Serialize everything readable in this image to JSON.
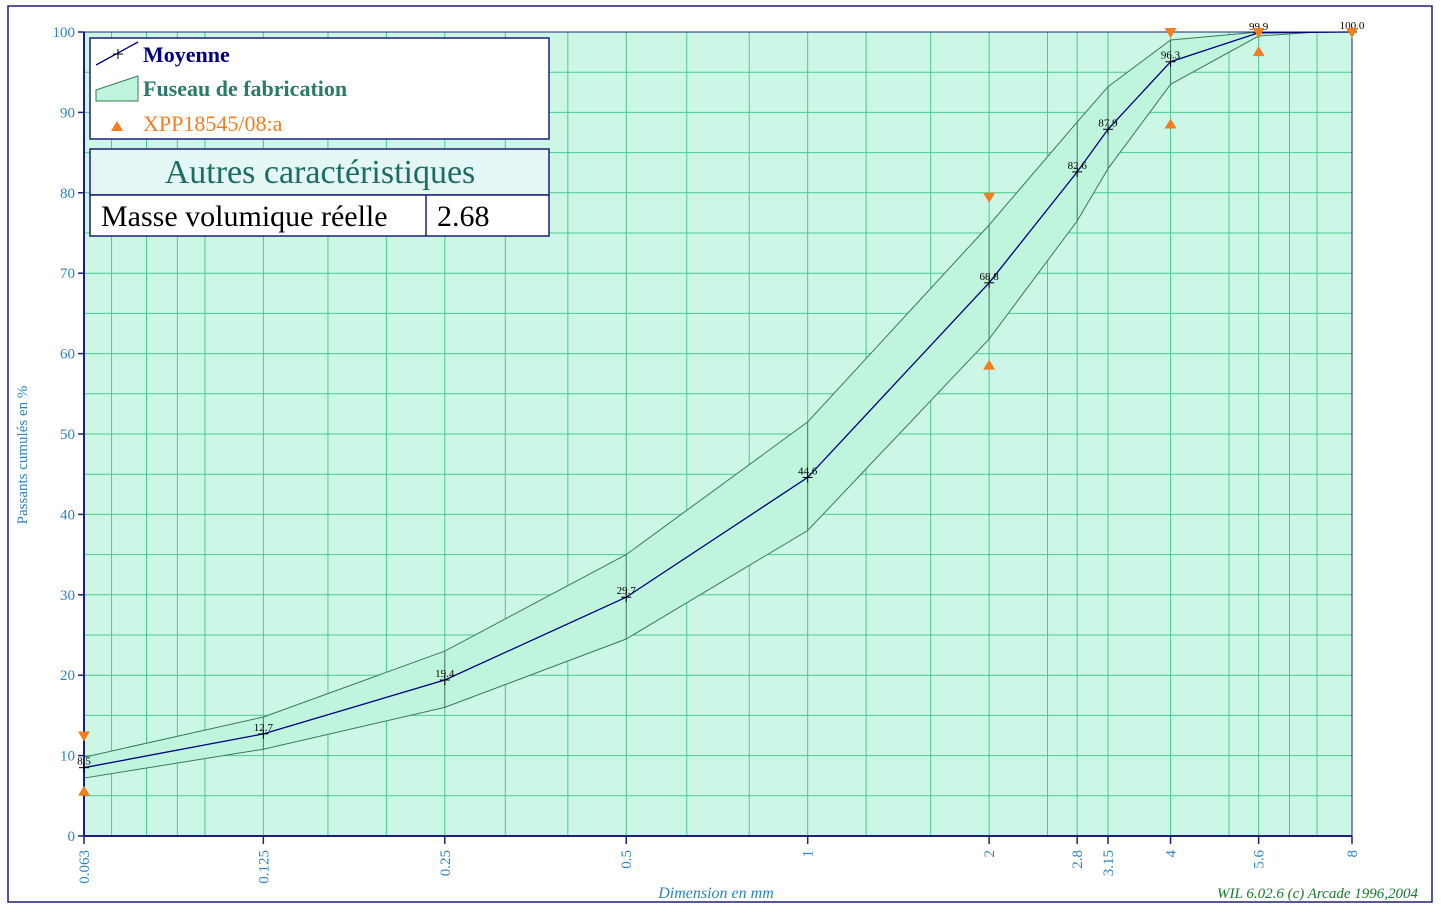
{
  "chart_data": {
    "type": "line",
    "xlabel": "Dimension en mm",
    "ylabel": "Passants cumulés en %",
    "x_scale": "log",
    "ylim": [
      0,
      100
    ],
    "yticks": [
      0,
      10,
      20,
      30,
      40,
      50,
      60,
      70,
      80,
      90,
      100
    ],
    "xticks": [
      "0.063",
      "0.125",
      "0.25",
      "0.5",
      "1",
      "2",
      "2.8",
      "3.15",
      "4",
      "5.6",
      "8"
    ],
    "grid": true,
    "legend_position": "top-left",
    "series": [
      {
        "name": "Moyenne",
        "x": [
          0.063,
          0.125,
          0.25,
          0.5,
          1,
          2,
          2.8,
          3.15,
          4,
          5.6,
          8
        ],
        "y": [
          8.5,
          12.7,
          19.4,
          29.7,
          44.6,
          68.8,
          82.6,
          87.9,
          96.3,
          99.9,
          100.0
        ],
        "labels": [
          "8.5",
          "12.7",
          "19.4",
          "29.7",
          "44.6",
          "68.8",
          "82.6",
          "87.9",
          "96.3",
          "99.9",
          "100.0"
        ],
        "color": "#000080"
      },
      {
        "name": "Fuseau de fabrication",
        "x": [
          0.063,
          0.125,
          0.25,
          0.5,
          1,
          2,
          2.8,
          3.15,
          4,
          5.6,
          7
        ],
        "upper": [
          9.8,
          14.8,
          23.0,
          35.0,
          51.5,
          76.0,
          88.8,
          93.2,
          99.0,
          100,
          100
        ],
        "lower": [
          7.2,
          10.8,
          16.0,
          24.5,
          38.0,
          61.8,
          76.5,
          83.0,
          93.5,
          99.5,
          100
        ],
        "fill": "#bff5dc",
        "stroke": "#3a7a5a"
      },
      {
        "name": "XPP18545/08:a",
        "color": "#f37e20",
        "max_x": [
          0.063,
          2,
          4,
          5.6,
          8
        ],
        "max_y": [
          12.5,
          79.5,
          100,
          100,
          100
        ],
        "min_x": [
          0.063,
          2,
          4,
          5.6
        ],
        "min_y": [
          5.5,
          58.5,
          88.5,
          97.5
        ]
      }
    ],
    "info_box": {
      "title": "Autres caractéristiques",
      "label": "Masse volumique réelle",
      "value": "2.68"
    },
    "credit": "WIL 6.02.6 (c) Arcade 1996,2004",
    "colors": {
      "plot_bg": "#ccf7e6",
      "grid": "#4cc98e",
      "axis": "#1f1f7a",
      "tick_text": "#2c84c4",
      "credit_text": "#1b7a2e"
    }
  }
}
